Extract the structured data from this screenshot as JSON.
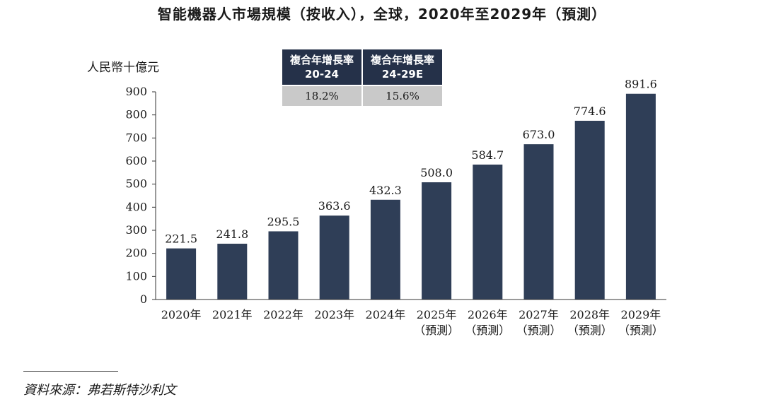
{
  "chart_data": {
    "type": "bar",
    "title": "智能機器人市場規模（按收入），全球，2020年至2029年（預測）",
    "ylabel": "人民幣十億元",
    "ylim": [
      0,
      900
    ],
    "yticks": [
      0,
      100,
      200,
      300,
      400,
      500,
      600,
      700,
      800,
      900
    ],
    "categories": [
      "2020年",
      "2021年",
      "2022年",
      "2023年",
      "2024年",
      "2025年",
      "2026年",
      "2027年",
      "2028年",
      "2029年"
    ],
    "category_sublabels": [
      "",
      "",
      "",
      "",
      "",
      "（預測）",
      "（預測）",
      "（預測）",
      "（預測）",
      "（預測）"
    ],
    "values": [
      221.5,
      241.8,
      295.5,
      363.6,
      432.3,
      508.0,
      584.7,
      673.0,
      774.6,
      891.6
    ],
    "value_labels": [
      "221.5",
      "241.8",
      "295.5",
      "363.6",
      "432.3",
      "508.0",
      "584.7",
      "673.0",
      "774.6",
      "891.6"
    ],
    "bar_color": "#2f3e57"
  },
  "cagr_table": {
    "headers": [
      {
        "line1": "複合年增長率",
        "line2": "20-24"
      },
      {
        "line1": "複合年增長率",
        "line2": "24-29E"
      }
    ],
    "values": [
      "18.2%",
      "15.6%"
    ]
  },
  "source": "資料來源：弗若斯特沙利文"
}
